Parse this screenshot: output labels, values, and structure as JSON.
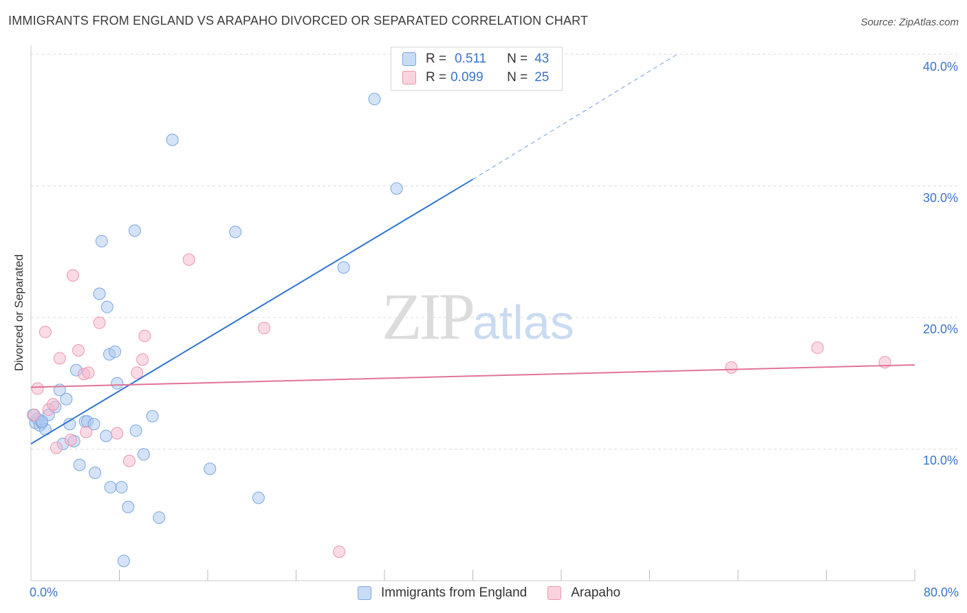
{
  "header": {
    "title": "IMMIGRANTS FROM ENGLAND VS ARAPAHO DIVORCED OR SEPARATED CORRELATION CHART",
    "source": "Source: ZipAtlas.com"
  },
  "watermark": {
    "zip": "ZIP",
    "atlas": "atlas"
  },
  "legend": {
    "rows": [
      {
        "r_label": "R =",
        "r_value": "0.511",
        "n_label": "N =",
        "n_value": "43",
        "color": "#a9c8f0"
      },
      {
        "r_label": "R =",
        "r_value": "0.099",
        "n_label": "N =",
        "n_value": "25",
        "color": "#f6b8cb"
      }
    ]
  },
  "bottom_legend": {
    "items": [
      {
        "label": "Immigrants from England",
        "color": "#a9c8f0"
      },
      {
        "label": "Arapaho",
        "color": "#f6b8cb"
      }
    ]
  },
  "colors": {
    "blue_fill": "#a9c8f0",
    "blue_stroke": "#7aa6e0",
    "blue_line": "#2f74d0",
    "pink_fill": "#f6b8cb",
    "pink_stroke": "#ec94af",
    "pink_line": "#e0729a",
    "axis_text": "#3a73c9",
    "grid": "#dddddd"
  },
  "chart_data": {
    "type": "scatter",
    "title": "IMMIGRANTS FROM ENGLAND VS ARAPAHO DIVORCED OR SEPARATED CORRELATION CHART",
    "xlabel": "",
    "ylabel": "Divorced or Separated",
    "xlim": [
      0,
      80
    ],
    "ylim": [
      0,
      40
    ],
    "x_tick_labels": [
      "0.0%",
      "80.0%"
    ],
    "y_ticks": [
      10,
      20,
      30,
      40
    ],
    "y_tick_labels": [
      "10.0%",
      "20.0%",
      "30.0%",
      "40.0%"
    ],
    "grid": true,
    "legend_position": "top-center",
    "series": [
      {
        "name": "Immigrants from England",
        "r": 0.511,
        "n": 43,
        "points": [
          [
            0.4,
            12.0
          ],
          [
            0.6,
            12.3
          ],
          [
            0.8,
            11.8
          ],
          [
            1.0,
            12.0
          ],
          [
            1.3,
            11.5
          ],
          [
            1.6,
            12.6
          ],
          [
            2.2,
            13.2
          ],
          [
            2.6,
            14.5
          ],
          [
            3.2,
            13.8
          ],
          [
            2.9,
            10.4
          ],
          [
            3.5,
            11.9
          ],
          [
            3.9,
            10.6
          ],
          [
            4.1,
            16.0
          ],
          [
            4.4,
            8.8
          ],
          [
            4.9,
            12.1
          ],
          [
            5.1,
            12.1
          ],
          [
            5.7,
            11.9
          ],
          [
            5.8,
            8.2
          ],
          [
            6.2,
            21.8
          ],
          [
            6.4,
            25.8
          ],
          [
            6.8,
            11.0
          ],
          [
            6.9,
            20.8
          ],
          [
            7.1,
            17.2
          ],
          [
            7.2,
            7.1
          ],
          [
            7.6,
            17.4
          ],
          [
            7.8,
            15.0
          ],
          [
            8.2,
            7.1
          ],
          [
            8.4,
            1.5
          ],
          [
            8.8,
            5.6
          ],
          [
            9.4,
            26.6
          ],
          [
            9.5,
            11.4
          ],
          [
            10.2,
            9.6
          ],
          [
            11.0,
            12.5
          ],
          [
            11.6,
            4.8
          ],
          [
            12.8,
            33.5
          ],
          [
            16.2,
            8.5
          ],
          [
            18.5,
            26.5
          ],
          [
            20.6,
            6.3
          ],
          [
            28.3,
            23.8
          ],
          [
            31.1,
            36.6
          ],
          [
            33.1,
            29.8
          ],
          [
            0.2,
            12.6
          ],
          [
            1.0,
            12.1
          ]
        ],
        "trend": {
          "x": [
            0,
            40
          ],
          "y": [
            10.4,
            30.5
          ],
          "dashed_to": [
            58.5,
            40.0
          ]
        }
      },
      {
        "name": "Arapaho",
        "r": 0.099,
        "n": 25,
        "points": [
          [
            0.3,
            12.6
          ],
          [
            0.6,
            14.6
          ],
          [
            1.3,
            18.9
          ],
          [
            1.6,
            13.0
          ],
          [
            2.0,
            13.4
          ],
          [
            2.3,
            10.1
          ],
          [
            2.6,
            16.9
          ],
          [
            3.6,
            10.7
          ],
          [
            3.8,
            23.2
          ],
          [
            4.3,
            17.5
          ],
          [
            4.8,
            15.7
          ],
          [
            5.0,
            11.3
          ],
          [
            6.2,
            19.6
          ],
          [
            7.8,
            11.2
          ],
          [
            8.9,
            9.1
          ],
          [
            9.6,
            15.8
          ],
          [
            10.1,
            16.8
          ],
          [
            10.3,
            18.6
          ],
          [
            14.3,
            24.4
          ],
          [
            21.1,
            19.2
          ],
          [
            27.9,
            2.2
          ],
          [
            63.4,
            16.2
          ],
          [
            71.2,
            17.7
          ],
          [
            77.3,
            16.6
          ],
          [
            5.2,
            15.8
          ]
        ],
        "trend": {
          "x": [
            0,
            80
          ],
          "y": [
            14.7,
            16.4
          ]
        }
      }
    ]
  }
}
